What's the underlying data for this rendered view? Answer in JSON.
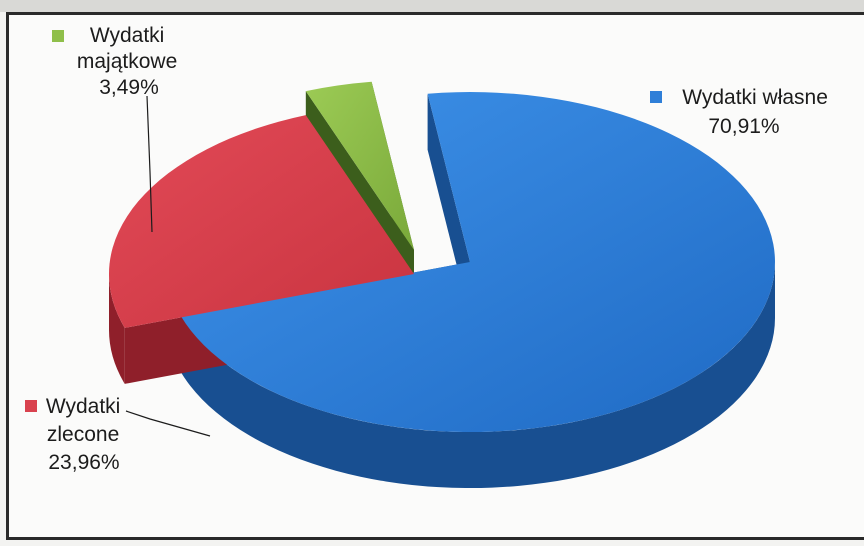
{
  "colors": {
    "wlasne": "#2f7fd8",
    "wlasne_side": "#184f91",
    "zlecone": "#d9424e",
    "zlecone_side": "#8f1f2a",
    "majatkowe": "#8fbf4a",
    "majatkowe_side": "#3c5e1c"
  },
  "chart_data": {
    "type": "pie",
    "title": "",
    "slices": [
      {
        "id": "wlasne",
        "lines": [
          "Wydatki własne",
          "70,91%"
        ],
        "value": 70.91
      },
      {
        "id": "zlecone",
        "lines": [
          "Wydatki",
          "zlecone",
          "23,96%"
        ],
        "value": 23.96
      },
      {
        "id": "majatkowe",
        "lines": [
          "Wydatki",
          "majątkowe",
          "3,49%"
        ],
        "value": 3.49
      }
    ]
  }
}
